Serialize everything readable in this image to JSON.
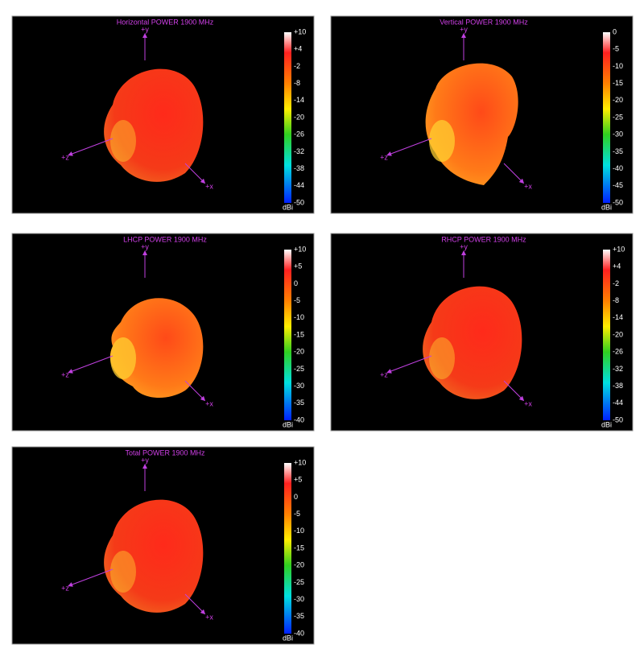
{
  "panels": [
    {
      "title": "Horizontal POWER 1900  MHz",
      "axes": {
        "y": "+y",
        "z": "+z",
        "x": "+x"
      },
      "colorbar": {
        "ticks": [
          "+10",
          "+4",
          "-2",
          "-8",
          "-14",
          "-20",
          "-26",
          "-32",
          "-38",
          "-44",
          "-50"
        ],
        "unit": "dBi"
      }
    },
    {
      "title": "Vertical POWER 1900  MHz",
      "axes": {
        "y": "+y",
        "z": "+z",
        "x": "+x"
      },
      "colorbar": {
        "ticks": [
          "0",
          "-5",
          "-10",
          "-15",
          "-20",
          "-25",
          "-30",
          "-35",
          "-40",
          "-45",
          "-50"
        ],
        "unit": "dBi"
      }
    },
    {
      "title": "LHCP POWER 1900  MHz",
      "axes": {
        "y": "+y",
        "z": "+z",
        "x": "+x"
      },
      "colorbar": {
        "ticks": [
          "+10",
          "+5",
          "0",
          "-5",
          "-10",
          "-15",
          "-20",
          "-25",
          "-30",
          "-35",
          "-40"
        ],
        "unit": "dBi"
      }
    },
    {
      "title": "RHCP POWER 1900  MHz",
      "axes": {
        "y": "+y",
        "z": "+z",
        "x": "+x"
      },
      "colorbar": {
        "ticks": [
          "+10",
          "+4",
          "-2",
          "-8",
          "-14",
          "-20",
          "-26",
          "-32",
          "-38",
          "-44",
          "-50"
        ],
        "unit": "dBi"
      }
    },
    {
      "title": "Total POWER 1900  MHz",
      "axes": {
        "y": "+y",
        "z": "+z",
        "x": "+x"
      },
      "colorbar": {
        "ticks": [
          "+10",
          "+5",
          "0",
          "-5",
          "-10",
          "-15",
          "-20",
          "-25",
          "-30",
          "-35",
          "-40"
        ],
        "unit": "dBi"
      }
    }
  ]
}
